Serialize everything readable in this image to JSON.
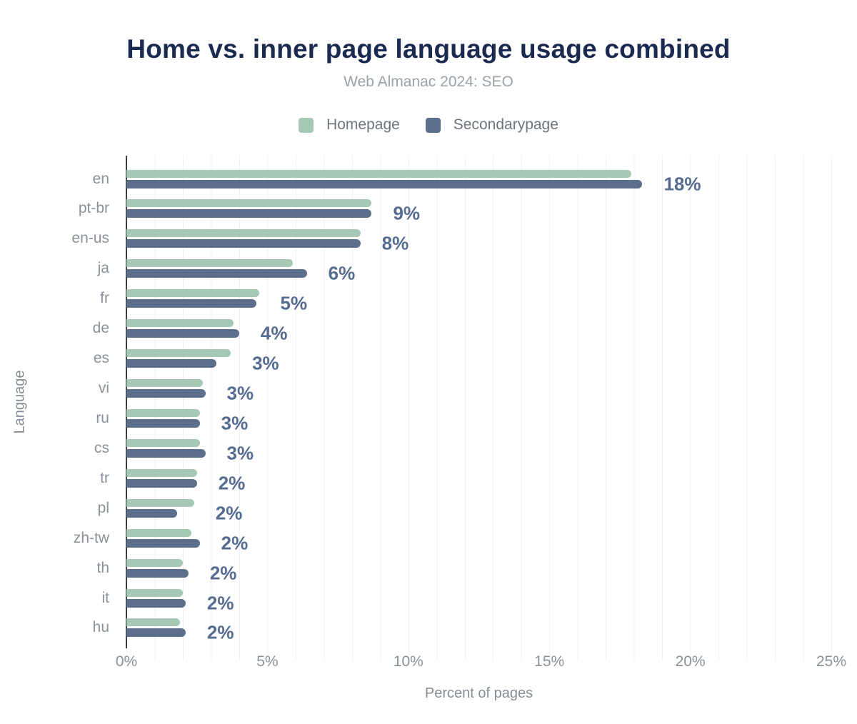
{
  "chart": {
    "title": "Home vs. inner page language usage combined",
    "subtitle": "Web Almanac 2024: SEO",
    "xlabel": "Percent of pages",
    "ylabel": "Language",
    "legend": [
      {
        "label": "Homepage",
        "color": "#a5c9b5"
      },
      {
        "label": "Secondarypage",
        "color": "#5b6e8b"
      }
    ]
  },
  "chart_data": {
    "type": "bar",
    "orientation": "horizontal",
    "title": "Home vs. inner page language usage combined",
    "subtitle": "Web Almanac 2024: SEO",
    "xlabel": "Percent of pages",
    "ylabel": "Language",
    "legend_position": "top",
    "grid": "vertical, every 1%",
    "x_max": 25,
    "x_ticks": [
      "0%",
      "5%",
      "10%",
      "15%",
      "20%",
      "25%"
    ],
    "categories": [
      "en",
      "pt-br",
      "en-us",
      "ja",
      "fr",
      "de",
      "es",
      "vi",
      "ru",
      "cs",
      "tr",
      "pl",
      "zh-tw",
      "th",
      "it",
      "hu"
    ],
    "series": [
      {
        "name": "Homepage",
        "color": "#a5c9b5",
        "values": [
          17.9,
          8.7,
          8.3,
          5.9,
          4.7,
          3.8,
          3.7,
          2.7,
          2.6,
          2.6,
          2.5,
          2.4,
          2.3,
          2.0,
          2.0,
          1.9
        ]
      },
      {
        "name": "Secondarypage",
        "color": "#5b6e8b",
        "values": [
          18.3,
          8.7,
          8.3,
          6.4,
          4.6,
          4.0,
          3.2,
          2.8,
          2.6,
          2.8,
          2.5,
          1.8,
          2.6,
          2.2,
          2.1,
          2.1
        ]
      }
    ],
    "bar_labels": [
      "18%",
      "9%",
      "8%",
      "6%",
      "5%",
      "4%",
      "3%",
      "3%",
      "3%",
      "3%",
      "2%",
      "2%",
      "2%",
      "2%",
      "2%",
      "2%"
    ]
  }
}
